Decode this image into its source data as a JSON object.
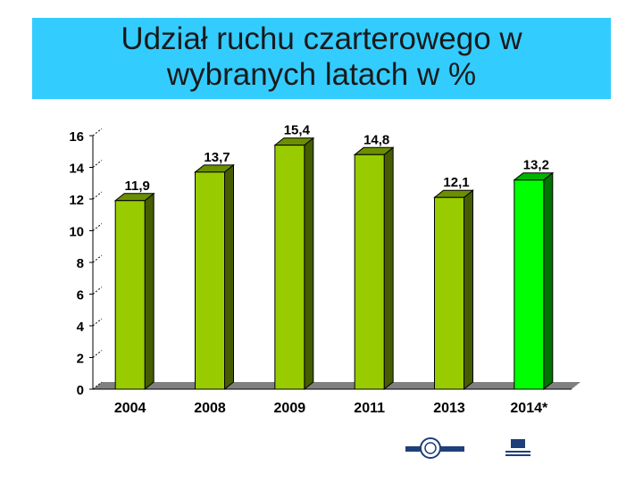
{
  "chart_data": {
    "type": "bar",
    "title_lines": [
      "Udział ruchu czarterowego w",
      "wybranych latach w %"
    ],
    "categories": [
      "2004",
      "2008",
      "2009",
      "2011",
      "2013",
      "2014*"
    ],
    "values": [
      11.9,
      13.7,
      15.4,
      14.8,
      12.1,
      13.2
    ],
    "value_labels": [
      "11,9",
      "13,7",
      "15,4",
      "14,8",
      "12,1",
      "13,2"
    ],
    "y_ticks": [
      "0",
      "2",
      "4",
      "6",
      "8",
      "10",
      "12",
      "14",
      "16"
    ],
    "ylim": [
      0,
      16
    ],
    "bar_colors": [
      "#99cc00",
      "#99cc00",
      "#99cc00",
      "#99cc00",
      "#99cc00",
      "#00ff00"
    ],
    "grid": false,
    "legend": "none",
    "style": "3d"
  }
}
